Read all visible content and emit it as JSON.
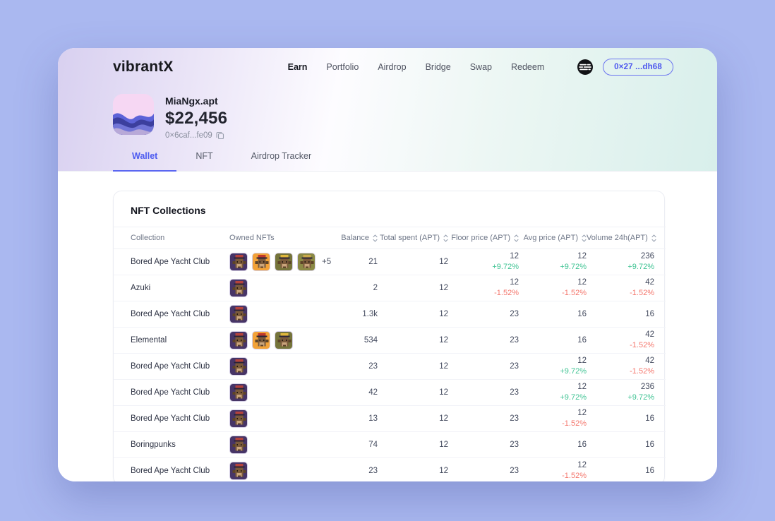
{
  "brand": "vibrantX",
  "nav": {
    "items": [
      "Earn",
      "Portfolio",
      "Airdrop",
      "Bridge",
      "Swap",
      "Redeem"
    ],
    "active": "Earn"
  },
  "header_right": {
    "network_icon": "aptos-logo-icon",
    "wallet_pill_label": "0×27 ...dh68"
  },
  "profile": {
    "name": "MiaNgx.apt",
    "balance": "$22,456",
    "address": "0×6caf...fe09",
    "copy_icon": "copy-icon"
  },
  "tabs": {
    "items": [
      "Wallet",
      "NFT",
      "Airdrop Tracker"
    ],
    "active": "Wallet"
  },
  "card": {
    "title": "NFT Collections",
    "columns": [
      {
        "label": "Collection",
        "sortable": false,
        "align": "left",
        "key": "collection"
      },
      {
        "label": "Owned NFTs",
        "sortable": false,
        "align": "left",
        "key": "owned"
      },
      {
        "label": "Balance",
        "sortable": true,
        "align": "right",
        "key": "balance"
      },
      {
        "label": "Total spent (APT)",
        "sortable": true,
        "align": "right",
        "key": "total_spent"
      },
      {
        "label": "Floor price (APT)",
        "sortable": true,
        "align": "right",
        "key": "floor"
      },
      {
        "label": "Avg price (APT)",
        "sortable": true,
        "align": "right",
        "key": "avg"
      },
      {
        "label": "Volume 24h(APT)",
        "sortable": true,
        "align": "right",
        "key": "volume"
      }
    ],
    "sort_icon": "sort-arrows-icon",
    "rows": [
      {
        "collection": "Bored Ape Yacht Club",
        "thumbs": [
          {
            "bg": "#473567",
            "cap": "#b5433c"
          },
          {
            "bg": "#f2a238",
            "cap": "#c0392b"
          },
          {
            "bg": "#75743a",
            "cap": "#e0b73c"
          },
          {
            "bg": "#8b8a45",
            "cap": "#caa84a"
          }
        ],
        "extra": "+5",
        "balance": "21",
        "total_spent": "12",
        "floor": {
          "value": "12",
          "change": "+9.72%",
          "dir": "up"
        },
        "avg": {
          "value": "12",
          "change": "+9.72%",
          "dir": "up"
        },
        "volume": {
          "value": "236",
          "change": "+9.72%",
          "dir": "up"
        }
      },
      {
        "collection": "Azuki",
        "thumbs": [
          {
            "bg": "#473567",
            "cap": "#b5433c"
          }
        ],
        "extra": null,
        "balance": "2",
        "total_spent": "12",
        "floor": {
          "value": "12",
          "change": "-1.52%",
          "dir": "down"
        },
        "avg": {
          "value": "12",
          "change": "-1.52%",
          "dir": "down"
        },
        "volume": {
          "value": "42",
          "change": "-1.52%",
          "dir": "down"
        }
      },
      {
        "collection": "Bored Ape Yacht Club",
        "thumbs": [
          {
            "bg": "#473567",
            "cap": "#b5433c"
          }
        ],
        "extra": null,
        "balance": "1.3k",
        "total_spent": "12",
        "floor": {
          "value": "23",
          "change": null,
          "dir": null
        },
        "avg": {
          "value": "16",
          "change": null,
          "dir": null
        },
        "volume": {
          "value": "16",
          "change": null,
          "dir": null
        }
      },
      {
        "collection": "Elemental",
        "thumbs": [
          {
            "bg": "#473567",
            "cap": "#b5433c"
          },
          {
            "bg": "#f2a238",
            "cap": "#c0392b"
          },
          {
            "bg": "#75743a",
            "cap": "#e0b73c"
          }
        ],
        "extra": null,
        "balance": "534",
        "total_spent": "12",
        "floor": {
          "value": "23",
          "change": null,
          "dir": null
        },
        "avg": {
          "value": "16",
          "change": null,
          "dir": null
        },
        "volume": {
          "value": "42",
          "change": "-1.52%",
          "dir": "down"
        }
      },
      {
        "collection": "Bored Ape Yacht Club",
        "thumbs": [
          {
            "bg": "#473567",
            "cap": "#b5433c"
          }
        ],
        "extra": null,
        "balance": "23",
        "total_spent": "12",
        "floor": {
          "value": "23",
          "change": null,
          "dir": null
        },
        "avg": {
          "value": "12",
          "change": "+9.72%",
          "dir": "up"
        },
        "volume": {
          "value": "42",
          "change": "-1.52%",
          "dir": "down"
        }
      },
      {
        "collection": "Bored Ape Yacht Club",
        "thumbs": [
          {
            "bg": "#473567",
            "cap": "#b5433c"
          }
        ],
        "extra": null,
        "balance": "42",
        "total_spent": "12",
        "floor": {
          "value": "23",
          "change": null,
          "dir": null
        },
        "avg": {
          "value": "12",
          "change": "+9.72%",
          "dir": "up"
        },
        "volume": {
          "value": "236",
          "change": "+9.72%",
          "dir": "up"
        }
      },
      {
        "collection": "Bored Ape Yacht Club",
        "thumbs": [
          {
            "bg": "#473567",
            "cap": "#b5433c"
          }
        ],
        "extra": null,
        "balance": "13",
        "total_spent": "12",
        "floor": {
          "value": "23",
          "change": null,
          "dir": null
        },
        "avg": {
          "value": "12",
          "change": "-1.52%",
          "dir": "down"
        },
        "volume": {
          "value": "16",
          "change": null,
          "dir": null
        }
      },
      {
        "collection": "Boringpunks",
        "thumbs": [
          {
            "bg": "#473567",
            "cap": "#b5433c"
          }
        ],
        "extra": null,
        "balance": "74",
        "total_spent": "12",
        "floor": {
          "value": "23",
          "change": null,
          "dir": null
        },
        "avg": {
          "value": "16",
          "change": null,
          "dir": null
        },
        "volume": {
          "value": "16",
          "change": null,
          "dir": null
        }
      },
      {
        "collection": "Bored Ape Yacht Club",
        "thumbs": [
          {
            "bg": "#473567",
            "cap": "#b5433c"
          }
        ],
        "extra": null,
        "balance": "23",
        "total_spent": "12",
        "floor": {
          "value": "23",
          "change": null,
          "dir": null
        },
        "avg": {
          "value": "12",
          "change": "-1.52%",
          "dir": "down"
        },
        "volume": {
          "value": "16",
          "change": null,
          "dir": null
        }
      }
    ]
  },
  "colors": {
    "accent": "#4d5bf0",
    "positive": "#3fc393",
    "negative": "#f4766c",
    "page_background": "#aab8f0"
  }
}
